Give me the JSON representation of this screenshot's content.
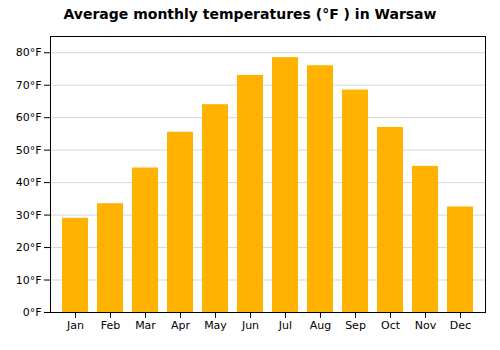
{
  "chart_data": {
    "type": "bar",
    "title": "Average monthly temperatures (°F ) in Warsaw",
    "categories": [
      "Jan",
      "Feb",
      "Mar",
      "Apr",
      "May",
      "Jun",
      "Jul",
      "Aug",
      "Sep",
      "Oct",
      "Nov",
      "Dec"
    ],
    "values": [
      29,
      33.5,
      44.5,
      55.5,
      64,
      73,
      78.5,
      76,
      68.5,
      57,
      45,
      32.5
    ],
    "color": "#FFB300",
    "ylim": [
      0,
      85
    ],
    "yticks": [
      {
        "value": 0,
        "label": "0°F"
      },
      {
        "value": 10,
        "label": "10°F"
      },
      {
        "value": 20,
        "label": "20°F"
      },
      {
        "value": 30,
        "label": "30°F"
      },
      {
        "value": 40,
        "label": "40°F"
      },
      {
        "value": 50,
        "label": "50°F"
      },
      {
        "value": 60,
        "label": "60°F"
      },
      {
        "value": 70,
        "label": "70°F"
      },
      {
        "value": 80,
        "label": "80°F"
      }
    ],
    "grid": true
  }
}
